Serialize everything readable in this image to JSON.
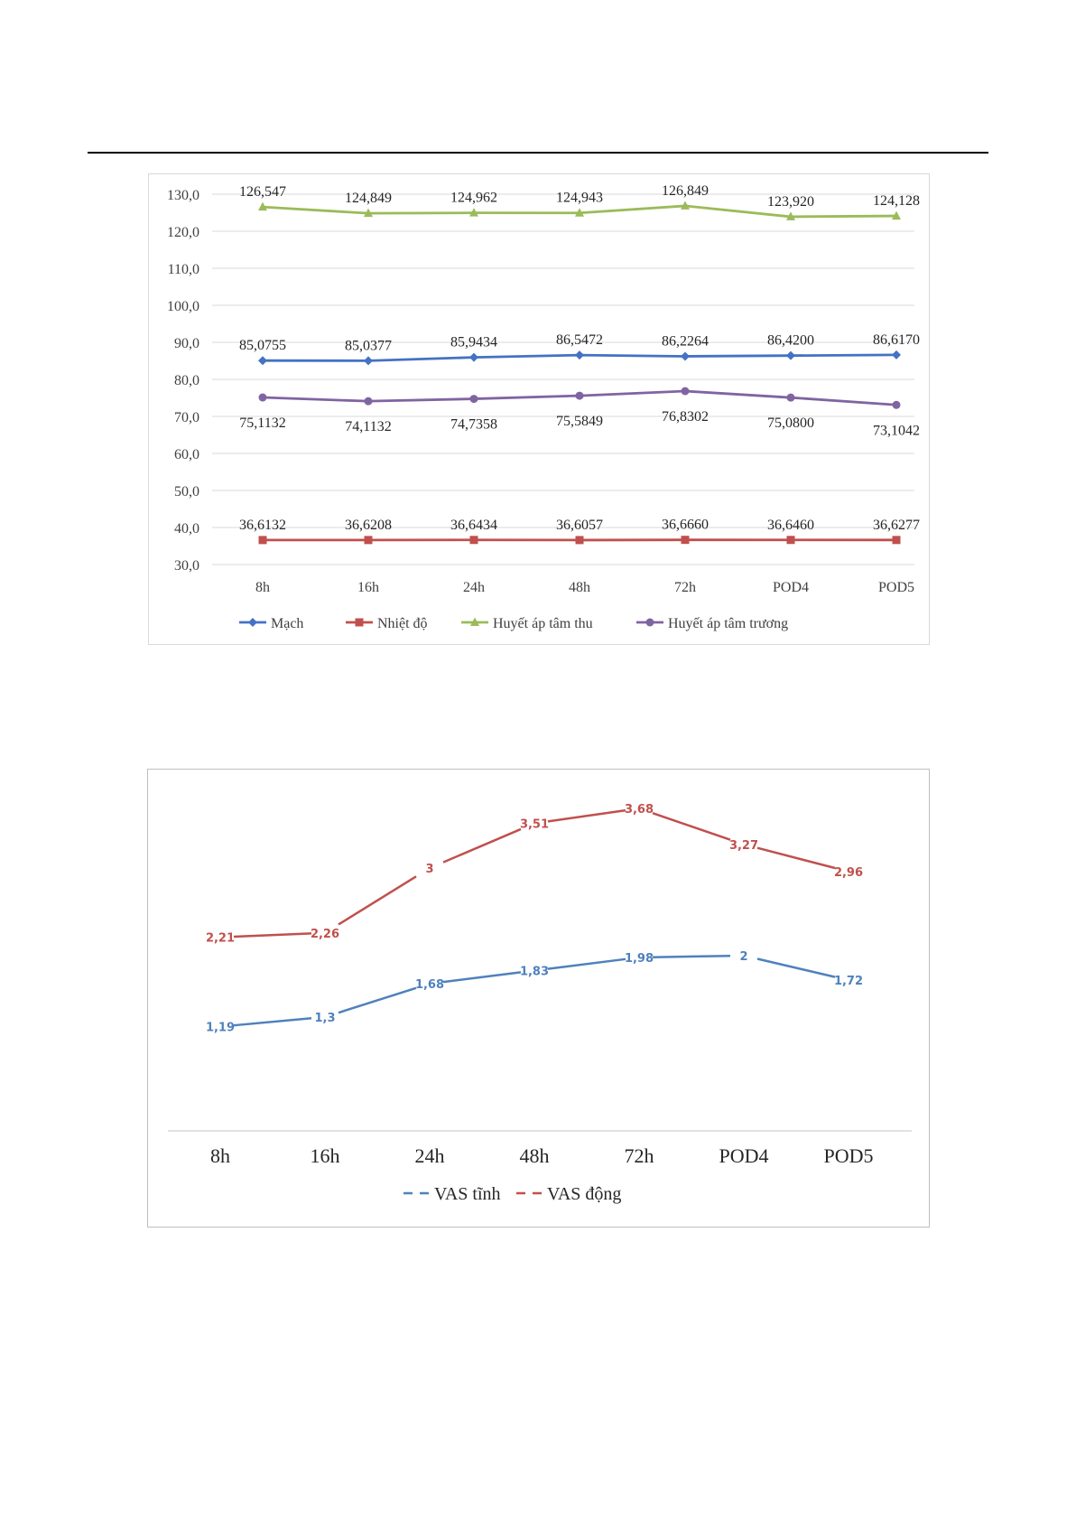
{
  "chart_data": [
    {
      "type": "line",
      "categories": [
        "8h",
        "16h",
        "24h",
        "48h",
        "72h",
        "POD4",
        "POD5"
      ],
      "ylim": [
        30,
        130
      ],
      "yticks": [
        "130,0",
        "120,0",
        "110,0",
        "100,0",
        "90,0",
        "80,0",
        "70,0",
        "60,0",
        "50,0",
        "40,0",
        "30,0"
      ],
      "grid": true,
      "legend_position": "bottom",
      "series": [
        {
          "name": "Mạch",
          "color": "#4472c4",
          "marker": "diamond",
          "label_position": "above",
          "values": [
            85.0755,
            85.0377,
            85.9434,
            86.5472,
            86.2264,
            86.42,
            86.617
          ],
          "labels": [
            "85,0755",
            "85,0377",
            "85,9434",
            "86,5472",
            "86,2264",
            "86,4200",
            "86,6170"
          ]
        },
        {
          "name": "Nhiệt độ",
          "color": "#c0504d",
          "marker": "square",
          "label_position": "above",
          "values": [
            36.6132,
            36.6208,
            36.6434,
            36.6057,
            36.666,
            36.646,
            36.6277
          ],
          "labels": [
            "36,6132",
            "36,6208",
            "36,6434",
            "36,6057",
            "36,6660",
            "36,6460",
            "36,6277"
          ]
        },
        {
          "name": "Huyết áp tâm thu",
          "color": "#9bbb59",
          "marker": "triangle",
          "label_position": "above",
          "values": [
            126.547,
            124.849,
            124.962,
            124.943,
            126.849,
            123.92,
            124.128
          ],
          "labels": [
            "126,547",
            "124,849",
            "124,962",
            "124,943",
            "126,849",
            "123,920",
            "124,128"
          ]
        },
        {
          "name": "Huyết áp tâm trương",
          "color": "#8064a2",
          "marker": "circle",
          "label_position": "below",
          "values": [
            75.1132,
            74.1132,
            74.7358,
            75.5849,
            76.8302,
            75.08,
            73.1042
          ],
          "labels": [
            "75,1132",
            "74,1132",
            "74,7358",
            "75,5849",
            "76,8302",
            "75,0800",
            "73,1042"
          ]
        }
      ]
    },
    {
      "type": "line",
      "categories": [
        "8h",
        "16h",
        "24h",
        "48h",
        "72h",
        "POD4",
        "POD5"
      ],
      "ylim": [
        0,
        4
      ],
      "grid": false,
      "legend_position": "bottom",
      "series": [
        {
          "name": "VAS tĩnh",
          "color": "#4f81bd",
          "marker": "none",
          "values": [
            1.19,
            1.3,
            1.68,
            1.83,
            1.98,
            2,
            1.72
          ],
          "labels": [
            "1,19",
            "1,3",
            "1,68",
            "1,83",
            "1,98",
            "2",
            "1,72"
          ]
        },
        {
          "name": "VAS động",
          "color": "#c0504d",
          "marker": "none",
          "values": [
            2.21,
            2.26,
            3,
            3.51,
            3.68,
            3.27,
            2.96
          ],
          "labels": [
            "2,21",
            "2,26",
            "3",
            "3,51",
            "3,68",
            "3,27",
            "2,96"
          ]
        }
      ]
    }
  ]
}
